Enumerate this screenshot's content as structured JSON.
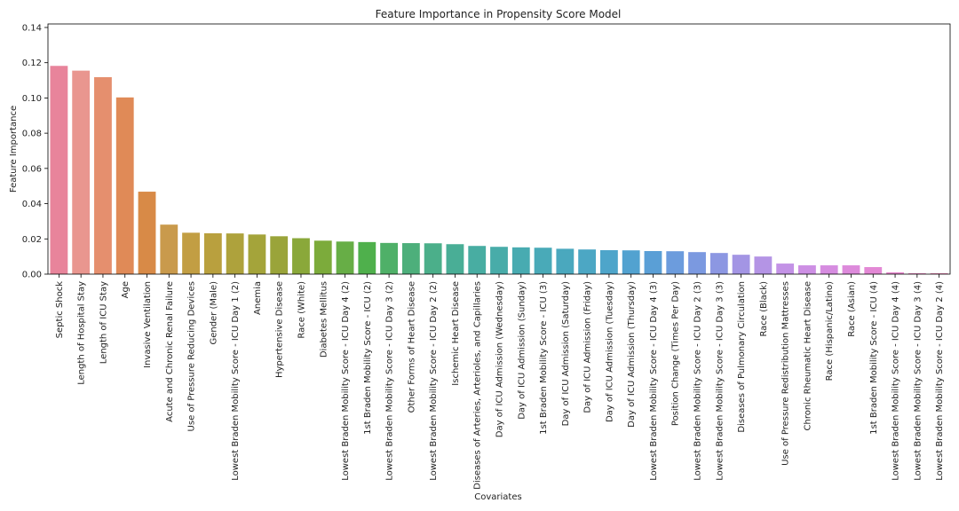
{
  "chart_data": {
    "type": "bar",
    "title": "Feature Importance in Propensity Score Model",
    "xlabel": "Covariates",
    "ylabel": "Feature Importance",
    "ylim": [
      0,
      0.142
    ],
    "yticks": [
      "0.00",
      "0.02",
      "0.04",
      "0.06",
      "0.08",
      "0.10",
      "0.12",
      "0.14"
    ],
    "grid": false,
    "legend": "none",
    "categories": [
      "Septic Shock",
      "Length of Hospital Stay",
      "Length of ICU Stay",
      "Age",
      "Invasive Ventilation",
      "Acute and Chronic Renal Failure",
      "Use of Pressure Reducing Devices",
      "Gender (Male)",
      "Lowest Braden Mobility Score - ICU Day 1 (2)",
      "Anemia",
      "Hypertensive Disease",
      "Race (White)",
      "Diabetes Mellitus",
      "Lowest Braden Mobility Score - ICU Day 4 (2)",
      "1st Braden Mobility Score - ICU (2)",
      "Lowest Braden Mobility Score - ICU Day 3 (2)",
      "Other Forms of Heart Disease",
      "Lowest Braden Mobility Score - ICU Day 2 (2)",
      "Ischemic Heart Disease",
      "Diseases of Arteries, Arterioles, and Capillaries",
      "Day of ICU Admission (Wednesday)",
      "Day of ICU Admission (Sunday)",
      "1st Braden Mobility Score - ICU (3)",
      "Day of ICU Admission (Saturday)",
      "Day of ICU Admission (Friday)",
      "Day of ICU Admission (Tuesday)",
      "Day of ICU Admission (Thursday)",
      "Lowest Braden Mobility Score - ICU Day 4 (3)",
      "Position Change (Times Per Day)",
      "Lowest Braden Mobility Score - ICU Day 2 (3)",
      "Lowest Braden Mobility Score - ICU Day 3 (3)",
      "Diseases of Pulmonary Circulation",
      "Race (Black)",
      "Use of Pressure Redistribution Mattresses",
      "Chronic Rheumatic Heart Disease",
      "Race (Hispanic/Latino)",
      "Race (Asian)",
      "1st Braden Mobility Score - ICU (4)",
      "Lowest Braden Mobility Score - ICU Day 4 (4)",
      "Lowest Braden Mobility Score - ICU Day 3 (4)",
      "Lowest Braden Mobility Score - ICU Day 2 (4)"
    ],
    "values": [
      0.1182,
      0.1155,
      0.1118,
      0.1003,
      0.0468,
      0.0281,
      0.0235,
      0.0232,
      0.0231,
      0.0225,
      0.0215,
      0.0204,
      0.019,
      0.0185,
      0.0182,
      0.0177,
      0.0176,
      0.0175,
      0.017,
      0.016,
      0.0155,
      0.0152,
      0.015,
      0.0144,
      0.014,
      0.0136,
      0.0135,
      0.0131,
      0.013,
      0.0125,
      0.012,
      0.011,
      0.01,
      0.006,
      0.005,
      0.005,
      0.005,
      0.004,
      0.001,
      0.0005,
      0.0005
    ],
    "colors": [
      "#e8849b",
      "#e9968f",
      "#e58f6e",
      "#e08a57",
      "#d88a47",
      "#c99a4c",
      "#c29e43",
      "#b9a03e",
      "#aea23c",
      "#a4a43a",
      "#9aa43a",
      "#8aa83a",
      "#7cab3b",
      "#67ae46",
      "#4fb04c",
      "#4fb068",
      "#4daf7b",
      "#4baf8a",
      "#49ae96",
      "#48ada2",
      "#48aca9",
      "#48abb1",
      "#49aab8",
      "#4aa8be",
      "#4ca7c4",
      "#4ea5ca",
      "#52a2d0",
      "#5a9fd6",
      "#6c9cdd",
      "#7b99e0",
      "#8c97e2",
      "#a395e4",
      "#b494e5",
      "#c392e6",
      "#cd8fe4",
      "#d68ce0",
      "#dd8adb",
      "#e388d5",
      "#e786cd",
      "#e985c2",
      "#eb85b5"
    ]
  }
}
